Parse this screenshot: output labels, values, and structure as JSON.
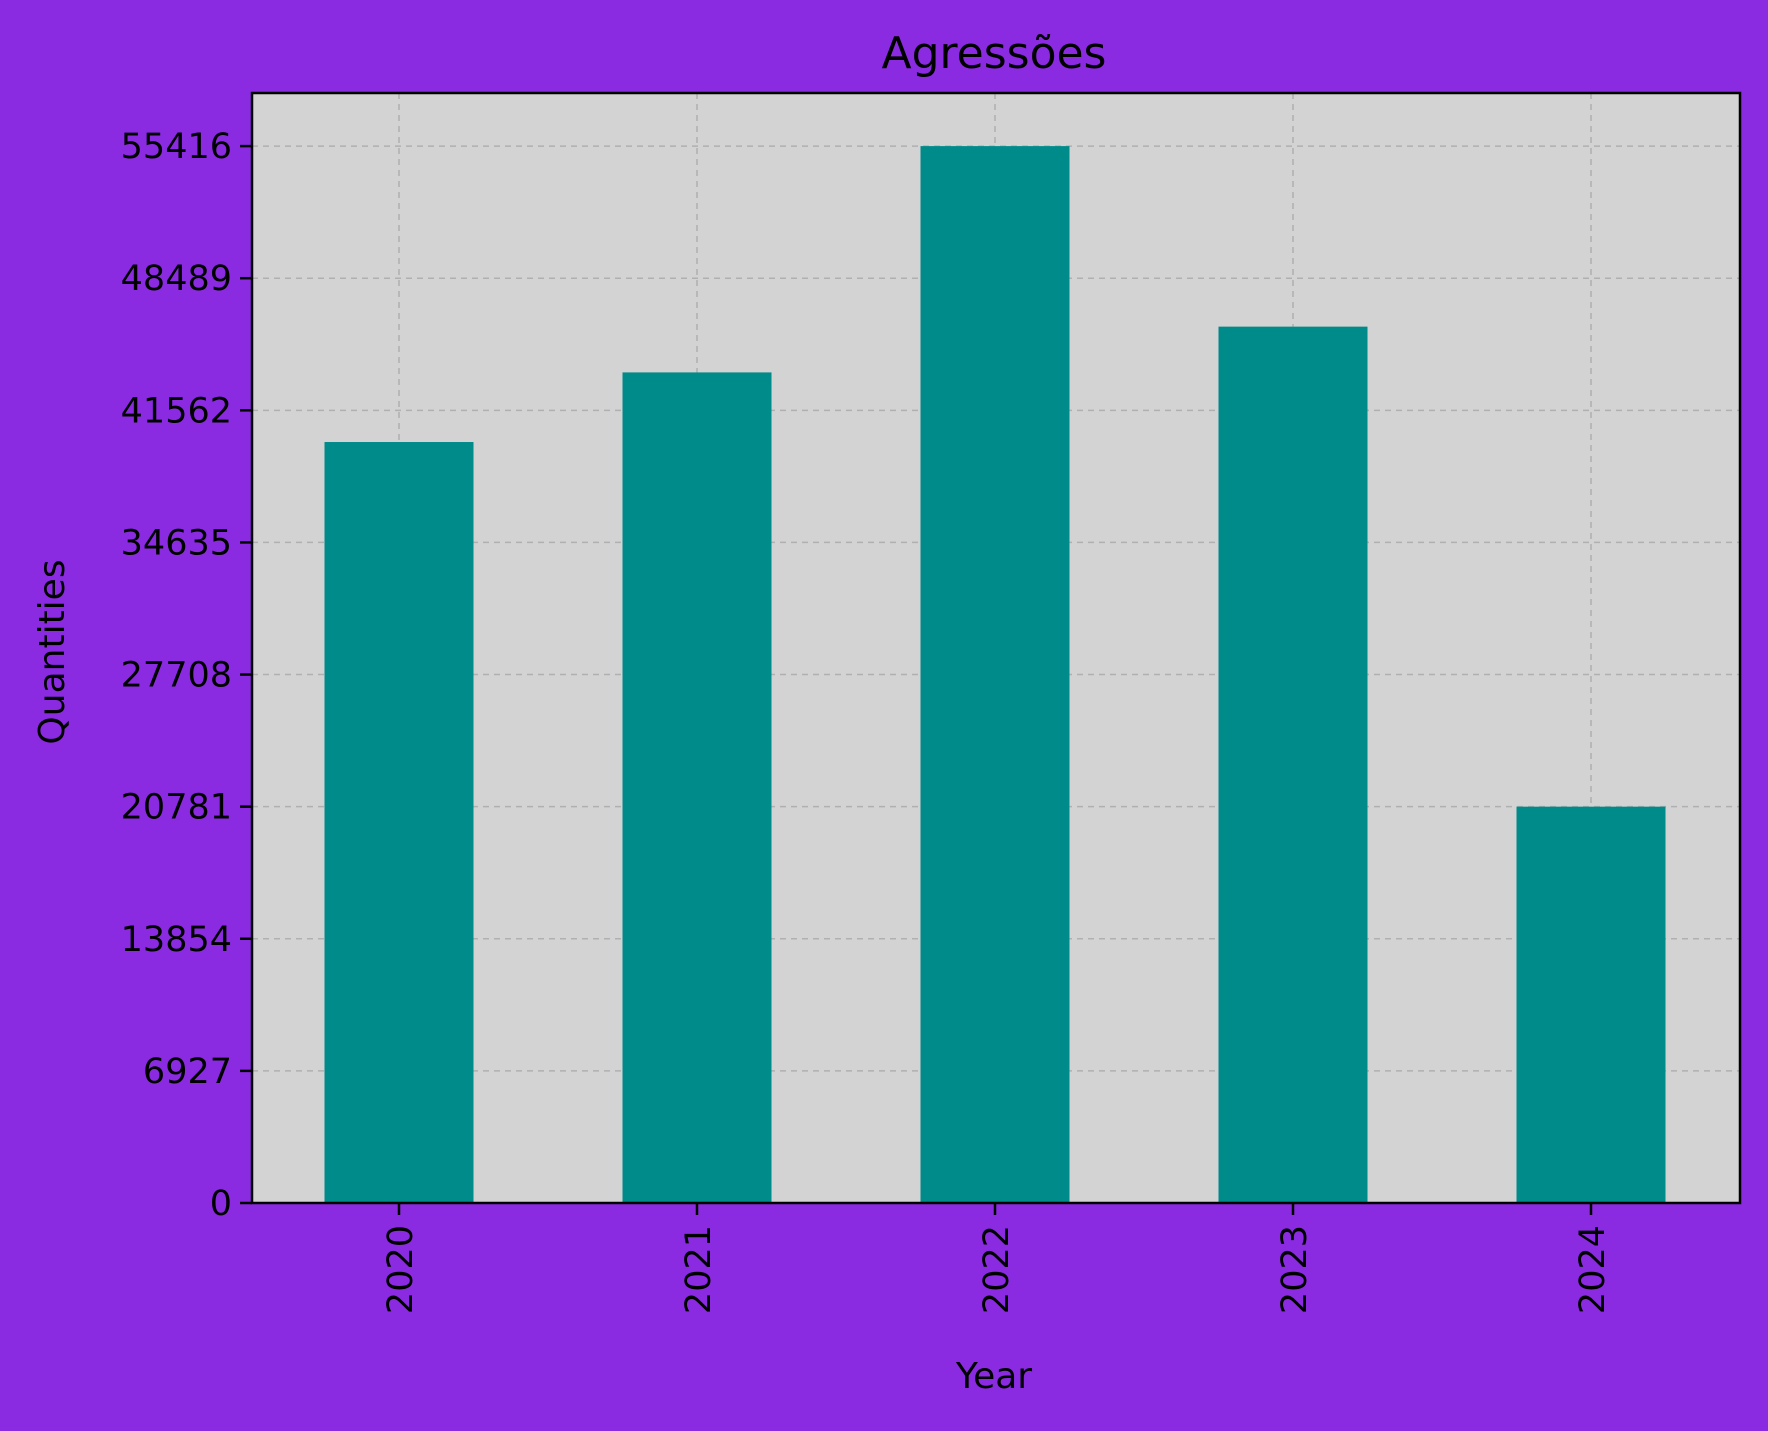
{
  "chart_data": {
    "type": "bar",
    "title": "Agressões",
    "xlabel": "Year",
    "ylabel": "Quantities",
    "categories": [
      "2020",
      "2021",
      "2022",
      "2023",
      "2024"
    ],
    "values": [
      39900,
      43550,
      55416,
      45950,
      20781
    ],
    "ylim": [
      0,
      58200
    ],
    "yticks": [
      0,
      6927,
      13854,
      20781,
      27708,
      34635,
      41562,
      48489,
      55416
    ],
    "grid": true,
    "colors": {
      "background": "#8a2be2",
      "plot_area": "#d3d3d3",
      "bar": "#008b8b",
      "grid": "#b0b0b0",
      "text": "#000000"
    }
  }
}
